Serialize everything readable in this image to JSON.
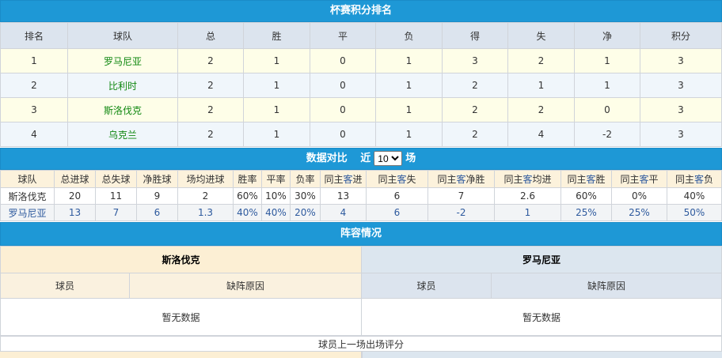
{
  "standings": {
    "title": "杯赛积分排名",
    "headers": [
      "排名",
      "球队",
      "总",
      "胜",
      "平",
      "负",
      "得",
      "失",
      "净",
      "积分"
    ],
    "rows": [
      [
        "1",
        "罗马尼亚",
        "2",
        "1",
        "0",
        "1",
        "3",
        "2",
        "1",
        "3"
      ],
      [
        "2",
        "比利时",
        "2",
        "1",
        "0",
        "1",
        "2",
        "1",
        "1",
        "3"
      ],
      [
        "3",
        "斯洛伐克",
        "2",
        "1",
        "0",
        "1",
        "2",
        "2",
        "0",
        "3"
      ],
      [
        "4",
        "乌克兰",
        "2",
        "1",
        "0",
        "1",
        "2",
        "4",
        "-2",
        "3"
      ]
    ]
  },
  "compare": {
    "title": "数据对比",
    "recent_label": "近",
    "recent_value": "10",
    "unit": "场",
    "headers": [
      "球队",
      "总进球",
      "总失球",
      "净胜球",
      "场均进球",
      "胜率",
      "平率",
      "负率",
      "同主客进",
      "同主客失",
      "同主客净胜",
      "同主客均进",
      "同主客胜",
      "同主客平",
      "同主客负"
    ],
    "rows": [
      [
        "斯洛伐克",
        "20",
        "11",
        "9",
        "2",
        "60%",
        "10%",
        "30%",
        "13",
        "6",
        "7",
        "2.6",
        "60%",
        "0%",
        "40%"
      ],
      [
        "罗马尼亚",
        "13",
        "7",
        "6",
        "1.3",
        "40%",
        "40%",
        "20%",
        "4",
        "6",
        "-2",
        "1",
        "25%",
        "25%",
        "50%"
      ]
    ]
  },
  "lineup": {
    "title": "阵容情况",
    "home": "斯洛伐克",
    "away": "罗马尼亚",
    "col_player": "球员",
    "col_reason": "缺阵原因",
    "no_data": "暂无数据",
    "footer": "球员上一场出场评分"
  }
}
